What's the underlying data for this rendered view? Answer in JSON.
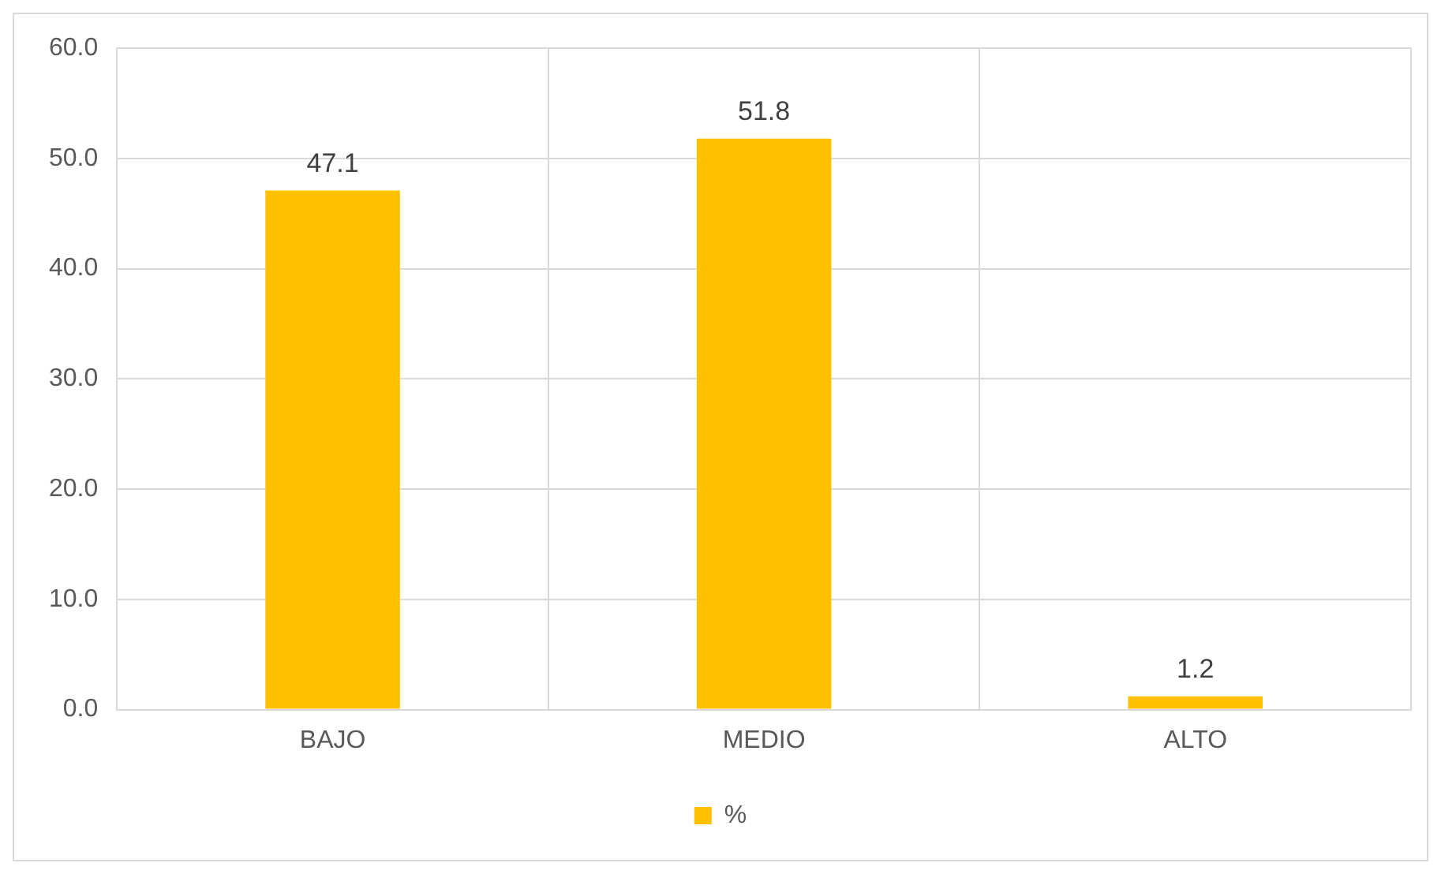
{
  "chart_data": {
    "type": "bar",
    "categories": [
      "BAJO",
      "MEDIO",
      "ALTO"
    ],
    "series": [
      {
        "name": "%",
        "color": "#ffc000",
        "values": [
          47.1,
          51.8,
          1.2
        ]
      }
    ],
    "ylim": [
      0,
      60
    ],
    "yticks": [
      {
        "value": 0,
        "label": "0.0"
      },
      {
        "value": 10,
        "label": "10.0"
      },
      {
        "value": 20,
        "label": "20.0"
      },
      {
        "value": 30,
        "label": "30.0"
      },
      {
        "value": 40,
        "label": "40.0"
      },
      {
        "value": 50,
        "label": "50.0"
      },
      {
        "value": 60,
        "label": "60.0"
      }
    ],
    "grid": true,
    "legend": "bottom",
    "data_labels": true
  }
}
